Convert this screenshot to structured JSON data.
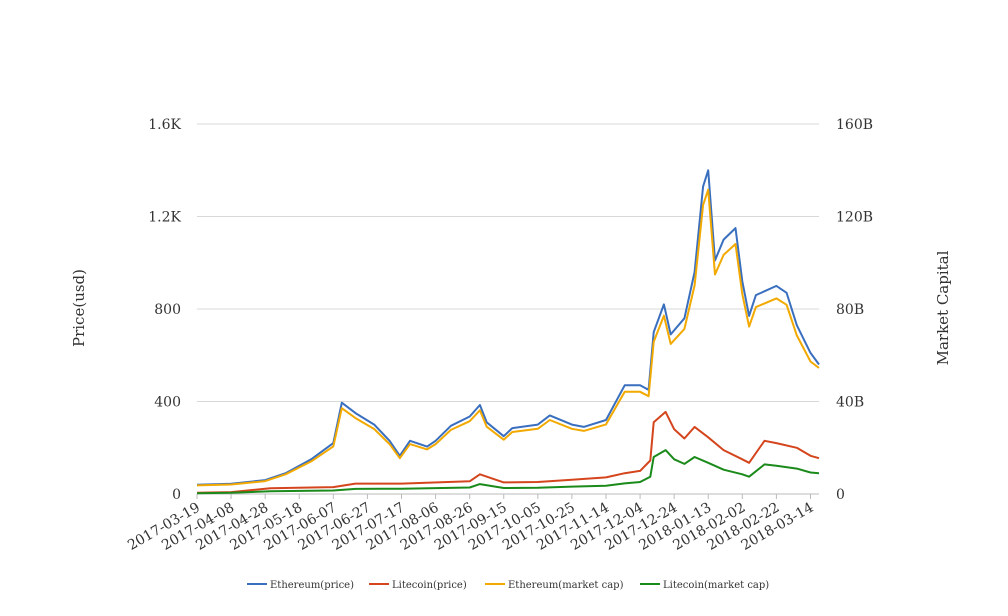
{
  "chart_data": {
    "type": "line",
    "x_ticks": [
      "2017-03-19",
      "2017-04-08",
      "2017-04-28",
      "2017-05-18",
      "2017-06-07",
      "2017-06-27",
      "2017-07-17",
      "2017-08-06",
      "2017-08-26",
      "2017-09-15",
      "2017-10-05",
      "2017-10-25",
      "2017-11-14",
      "2017-12-04",
      "2017-12-24",
      "2018-01-13",
      "2018-02-02",
      "2018-02-22",
      "2018-03-14"
    ],
    "x_start": "2017-03-19",
    "x_end": "2018-03-19",
    "y_left": {
      "label": "Price(usd)",
      "range": [
        0,
        1600
      ],
      "ticks": [
        0,
        400,
        800,
        1200,
        1600
      ],
      "tick_labels": [
        "0",
        "400",
        "800",
        "1.2K",
        "1.6K"
      ]
    },
    "y_right": {
      "label": "Market Capital",
      "range": [
        0,
        160
      ],
      "ticks": [
        0,
        40,
        80,
        120,
        160
      ],
      "tick_labels": [
        "0",
        "40B",
        "80B",
        "120B",
        "160B"
      ]
    },
    "grid": true,
    "legend_position": "bottom",
    "series": [
      {
        "name": "Ethereum(price)",
        "axis": "left",
        "color": "#3a6fbf",
        "points": [
          [
            "2017-03-19",
            40
          ],
          [
            "2017-04-08",
            44
          ],
          [
            "2017-04-28",
            60
          ],
          [
            "2017-05-10",
            90
          ],
          [
            "2017-05-25",
            150
          ],
          [
            "2017-06-07",
            220
          ],
          [
            "2017-06-12",
            395
          ],
          [
            "2017-06-20",
            350
          ],
          [
            "2017-07-01",
            300
          ],
          [
            "2017-07-10",
            230
          ],
          [
            "2017-07-16",
            165
          ],
          [
            "2017-07-22",
            230
          ],
          [
            "2017-08-01",
            205
          ],
          [
            "2017-08-06",
            230
          ],
          [
            "2017-08-15",
            295
          ],
          [
            "2017-08-26",
            335
          ],
          [
            "2017-09-01",
            385
          ],
          [
            "2017-09-05",
            310
          ],
          [
            "2017-09-15",
            250
          ],
          [
            "2017-09-20",
            285
          ],
          [
            "2017-10-05",
            300
          ],
          [
            "2017-10-12",
            340
          ],
          [
            "2017-10-25",
            300
          ],
          [
            "2017-11-01",
            290
          ],
          [
            "2017-11-14",
            320
          ],
          [
            "2017-11-25",
            470
          ],
          [
            "2017-12-04",
            470
          ],
          [
            "2017-12-09",
            450
          ],
          [
            "2017-12-12",
            700
          ],
          [
            "2017-12-18",
            820
          ],
          [
            "2017-12-22",
            690
          ],
          [
            "2017-12-30",
            760
          ],
          [
            "2018-01-05",
            960
          ],
          [
            "2018-01-10",
            1330
          ],
          [
            "2018-01-13",
            1400
          ],
          [
            "2018-01-17",
            1010
          ],
          [
            "2018-01-22",
            1100
          ],
          [
            "2018-01-29",
            1150
          ],
          [
            "2018-02-02",
            920
          ],
          [
            "2018-02-06",
            770
          ],
          [
            "2018-02-10",
            860
          ],
          [
            "2018-02-22",
            900
          ],
          [
            "2018-02-28",
            870
          ],
          [
            "2018-03-06",
            730
          ],
          [
            "2018-03-14",
            610
          ],
          [
            "2018-03-19",
            560
          ]
        ]
      },
      {
        "name": "Litecoin(price)",
        "axis": "left",
        "color": "#d4451d",
        "points": [
          [
            "2017-03-19",
            5
          ],
          [
            "2017-04-08",
            8
          ],
          [
            "2017-05-01",
            25
          ],
          [
            "2017-05-25",
            28
          ],
          [
            "2017-06-07",
            30
          ],
          [
            "2017-06-20",
            45
          ],
          [
            "2017-07-17",
            45
          ],
          [
            "2017-08-26",
            55
          ],
          [
            "2017-09-01",
            85
          ],
          [
            "2017-09-15",
            50
          ],
          [
            "2017-10-05",
            52
          ],
          [
            "2017-10-25",
            62
          ],
          [
            "2017-11-14",
            72
          ],
          [
            "2017-11-25",
            90
          ],
          [
            "2017-12-04",
            100
          ],
          [
            "2017-12-10",
            145
          ],
          [
            "2017-12-12",
            310
          ],
          [
            "2017-12-19",
            355
          ],
          [
            "2017-12-24",
            280
          ],
          [
            "2017-12-30",
            240
          ],
          [
            "2018-01-05",
            290
          ],
          [
            "2018-01-13",
            245
          ],
          [
            "2018-01-22",
            190
          ],
          [
            "2018-02-02",
            150
          ],
          [
            "2018-02-06",
            135
          ],
          [
            "2018-02-15",
            230
          ],
          [
            "2018-02-22",
            220
          ],
          [
            "2018-03-06",
            200
          ],
          [
            "2018-03-14",
            165
          ],
          [
            "2018-03-19",
            155
          ]
        ]
      },
      {
        "name": "Ethereum(market cap)",
        "axis": "right",
        "color": "#f2a900",
        "points": [
          [
            "2017-03-19",
            3.7
          ],
          [
            "2017-04-08",
            4.1
          ],
          [
            "2017-04-28",
            5.6
          ],
          [
            "2017-05-10",
            8.5
          ],
          [
            "2017-05-25",
            14.1
          ],
          [
            "2017-06-07",
            20.6
          ],
          [
            "2017-06-12",
            37.1
          ],
          [
            "2017-06-20",
            32.8
          ],
          [
            "2017-07-01",
            28.1
          ],
          [
            "2017-07-10",
            21.6
          ],
          [
            "2017-07-16",
            15.5
          ],
          [
            "2017-07-22",
            21.6
          ],
          [
            "2017-08-01",
            19.3
          ],
          [
            "2017-08-06",
            21.6
          ],
          [
            "2017-08-15",
            27.7
          ],
          [
            "2017-08-26",
            31.5
          ],
          [
            "2017-09-01",
            36.2
          ],
          [
            "2017-09-05",
            29.1
          ],
          [
            "2017-09-15",
            23.5
          ],
          [
            "2017-09-20",
            26.8
          ],
          [
            "2017-10-05",
            28.2
          ],
          [
            "2017-10-12",
            32.0
          ],
          [
            "2017-10-25",
            28.2
          ],
          [
            "2017-11-01",
            27.3
          ],
          [
            "2017-11-14",
            30.1
          ],
          [
            "2017-11-25",
            44.2
          ],
          [
            "2017-12-04",
            44.2
          ],
          [
            "2017-12-09",
            42.3
          ],
          [
            "2017-12-12",
            65.8
          ],
          [
            "2017-12-18",
            77.1
          ],
          [
            "2017-12-22",
            64.9
          ],
          [
            "2017-12-30",
            71.4
          ],
          [
            "2018-01-05",
            90.2
          ],
          [
            "2018-01-10",
            125.0
          ],
          [
            "2018-01-13",
            131.6
          ],
          [
            "2018-01-17",
            94.9
          ],
          [
            "2018-01-22",
            103.4
          ],
          [
            "2018-01-29",
            108.1
          ],
          [
            "2018-02-02",
            86.5
          ],
          [
            "2018-02-06",
            72.4
          ],
          [
            "2018-02-10",
            80.8
          ],
          [
            "2018-02-22",
            84.6
          ],
          [
            "2018-02-28",
            81.8
          ],
          [
            "2018-03-06",
            68.6
          ],
          [
            "2018-03-14",
            57.3
          ],
          [
            "2018-03-19",
            54.5
          ]
        ]
      },
      {
        "name": "Litecoin(market cap)",
        "axis": "right",
        "color": "#1a8a1a",
        "points": [
          [
            "2017-03-19",
            0.3
          ],
          [
            "2017-04-08",
            0.5
          ],
          [
            "2017-05-01",
            1.2
          ],
          [
            "2017-05-25",
            1.4
          ],
          [
            "2017-06-07",
            1.5
          ],
          [
            "2017-06-20",
            2.2
          ],
          [
            "2017-07-17",
            2.3
          ],
          [
            "2017-08-26",
            2.8
          ],
          [
            "2017-09-01",
            4.3
          ],
          [
            "2017-09-15",
            2.6
          ],
          [
            "2017-10-05",
            2.7
          ],
          [
            "2017-10-25",
            3.2
          ],
          [
            "2017-11-14",
            3.6
          ],
          [
            "2017-11-25",
            4.6
          ],
          [
            "2017-12-04",
            5.2
          ],
          [
            "2017-12-10",
            7.5
          ],
          [
            "2017-12-12",
            16.0
          ],
          [
            "2017-12-19",
            19.0
          ],
          [
            "2017-12-24",
            15.0
          ],
          [
            "2017-12-30",
            13.0
          ],
          [
            "2018-01-05",
            16.0
          ],
          [
            "2018-01-13",
            13.5
          ],
          [
            "2018-01-22",
            10.5
          ],
          [
            "2018-02-02",
            8.5
          ],
          [
            "2018-02-06",
            7.5
          ],
          [
            "2018-02-15",
            12.8
          ],
          [
            "2018-02-22",
            12.2
          ],
          [
            "2018-03-06",
            11.0
          ],
          [
            "2018-03-14",
            9.3
          ],
          [
            "2018-03-19",
            9.0
          ]
        ]
      }
    ]
  }
}
